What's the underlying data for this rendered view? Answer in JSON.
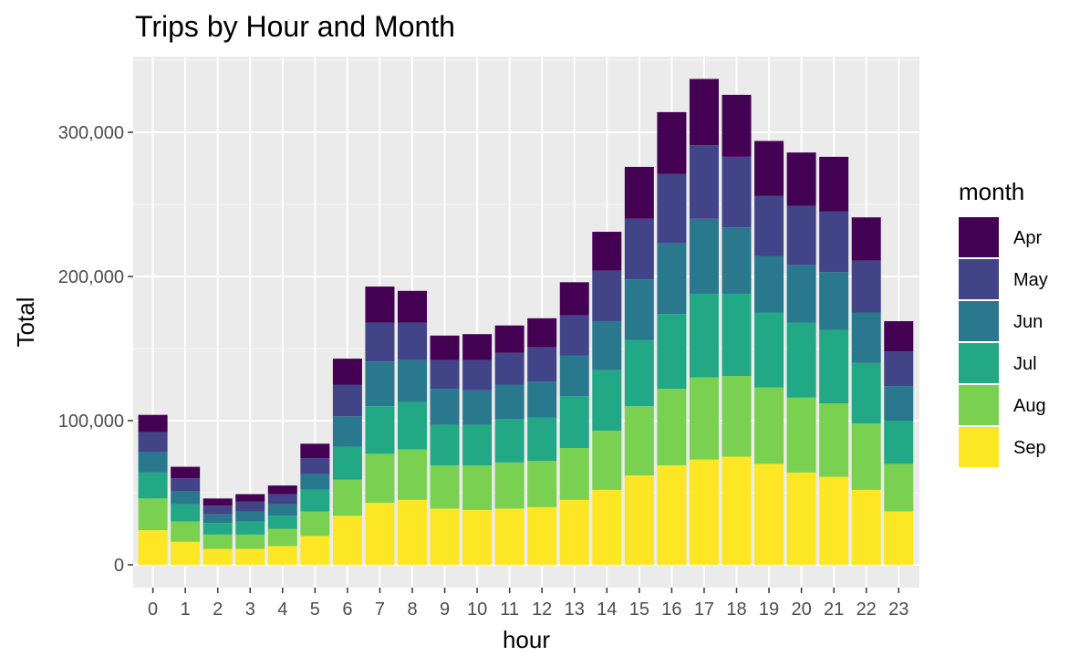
{
  "chart_data": {
    "type": "bar",
    "stacked": true,
    "title": "Trips by Hour and Month",
    "xlabel": "hour",
    "ylabel": "Total",
    "ylim": [
      -17000,
      356000
    ],
    "yticks": [
      0,
      100000,
      200000,
      300000
    ],
    "ytick_labels": [
      "0",
      "100,000",
      "200,000",
      "300,000"
    ],
    "grid": true,
    "legend_title": "month",
    "legend_position": "right",
    "categories": [
      "0",
      "1",
      "2",
      "3",
      "4",
      "5",
      "6",
      "7",
      "8",
      "9",
      "10",
      "11",
      "12",
      "13",
      "14",
      "15",
      "16",
      "17",
      "18",
      "19",
      "20",
      "21",
      "22",
      "23"
    ],
    "series": [
      {
        "name": "Sep",
        "color": "#FDE725",
        "values": [
          24000,
          16000,
          11000,
          11000,
          13000,
          20000,
          34000,
          43000,
          45000,
          39000,
          38000,
          39000,
          40000,
          45000,
          52000,
          62000,
          69000,
          73000,
          75000,
          70000,
          64000,
          61000,
          52000,
          37000
        ]
      },
      {
        "name": "Aug",
        "color": "#7AD151",
        "values": [
          22000,
          14000,
          10000,
          10000,
          12000,
          17000,
          25000,
          34000,
          35000,
          30000,
          31000,
          32000,
          32000,
          36000,
          41000,
          48000,
          53000,
          57000,
          56000,
          53000,
          52000,
          51000,
          46000,
          33000
        ]
      },
      {
        "name": "Jul",
        "color": "#22A884",
        "values": [
          18000,
          12000,
          8000,
          9000,
          9000,
          15000,
          23000,
          33000,
          33000,
          28000,
          28000,
          30000,
          30000,
          36000,
          42000,
          46000,
          52000,
          58000,
          57000,
          52000,
          52000,
          51000,
          42000,
          30000
        ]
      },
      {
        "name": "Jun",
        "color": "#2A788E",
        "values": [
          14000,
          9000,
          6000,
          7000,
          8000,
          11000,
          21000,
          31000,
          29000,
          25000,
          24000,
          24000,
          25000,
          28000,
          34000,
          42000,
          49000,
          52000,
          46000,
          39000,
          40000,
          40000,
          35000,
          24000
        ]
      },
      {
        "name": "May",
        "color": "#414487",
        "values": [
          14000,
          9000,
          6000,
          7000,
          7000,
          11000,
          22000,
          27000,
          26000,
          20000,
          21000,
          22000,
          24000,
          28000,
          35000,
          42000,
          48000,
          51000,
          49000,
          42000,
          41000,
          42000,
          36000,
          24000
        ]
      },
      {
        "name": "Apr",
        "color": "#440154",
        "values": [
          12000,
          8000,
          5000,
          5000,
          6000,
          10000,
          18000,
          25000,
          22000,
          17000,
          18000,
          19000,
          20000,
          23000,
          27000,
          36000,
          43000,
          46000,
          43000,
          38000,
          37000,
          38000,
          30000,
          21000
        ]
      }
    ]
  }
}
